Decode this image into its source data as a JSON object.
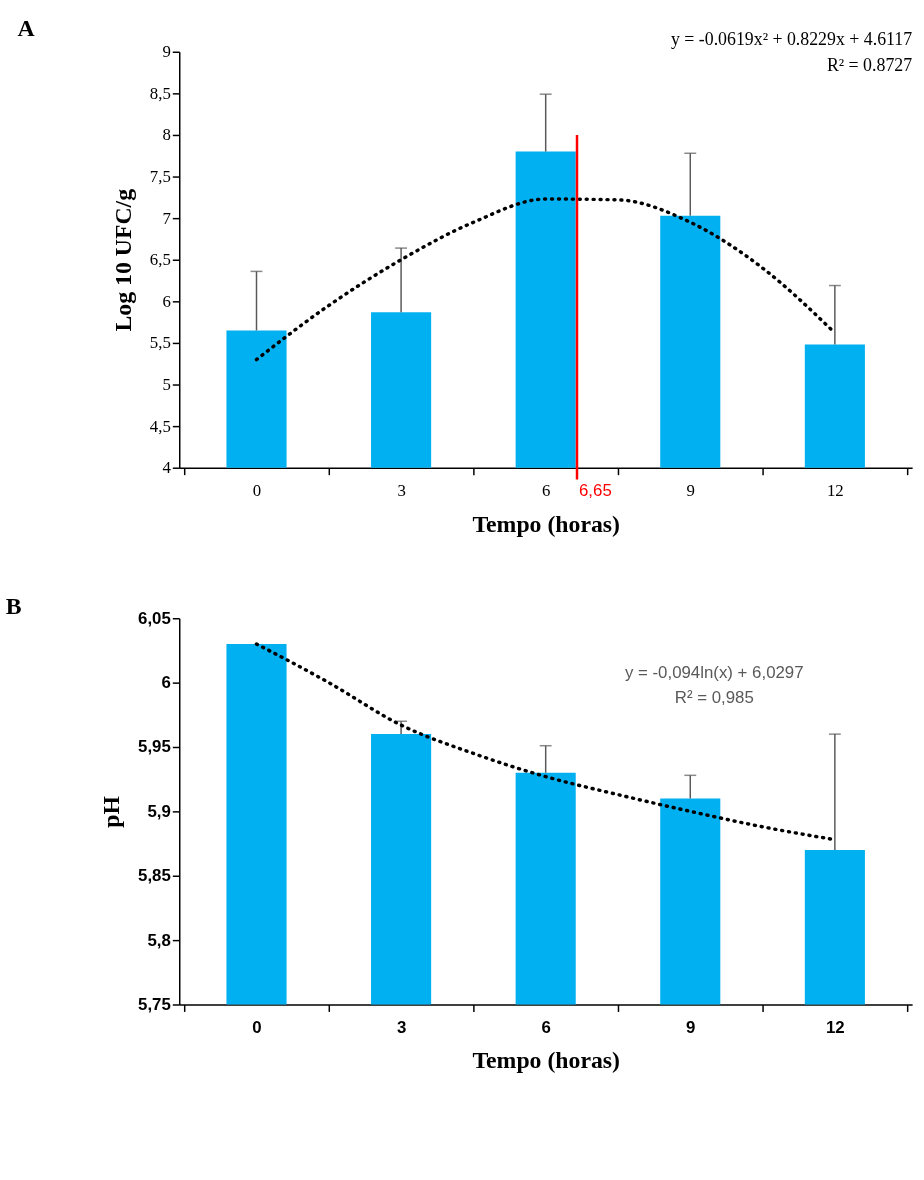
{
  "chart_data": [
    {
      "type": "bar",
      "title": "A",
      "xlabel": "Tempo (horas)",
      "ylabel": "Log 10 UFC/g",
      "x": [
        0,
        3,
        6,
        9,
        12
      ],
      "xlim": [
        -1.5,
        13.5
      ],
      "xticks": [
        {
          "value": -1.5,
          "label": null
        },
        0,
        {
          "value": 1.5,
          "label": null
        },
        3,
        {
          "value": 4.5,
          "label": null
        },
        6,
        {
          "value": 7.5,
          "label": null
        },
        9,
        {
          "value": 10.5,
          "label": null
        },
        12,
        {
          "value": 13.5,
          "label": null
        }
      ],
      "ylim": [
        4,
        9
      ],
      "yticks": [
        4,
        {
          "value": 4.5,
          "label": "4,5"
        },
        5,
        {
          "value": 5.5,
          "label": "5,5"
        },
        6,
        {
          "value": 6.5,
          "label": "6,5"
        },
        7,
        {
          "value": 7.5,
          "label": "7,5"
        },
        8,
        {
          "value": 8.5,
          "label": "8,5"
        },
        9
      ],
      "series": [
        {
          "color": "#00b0f0",
          "values": [
            5.65,
            5.87,
            7.8,
            7.03,
            5.48
          ],
          "errors": [
            [
              5.65,
              6.36
            ],
            [
              5.87,
              6.64
            ],
            [
              7.8,
              8.49
            ],
            [
              7.03,
              7.78
            ],
            [
              5.48,
              6.19
            ]
          ]
        },
        {
          "type": "line",
          "color": "#000000",
          "line_style": "dotted",
          "x": [
            0,
            1.5,
            3,
            4.5,
            6,
            7.5,
            9,
            10.5,
            12
          ],
          "values": [
            5.3,
            5.95,
            6.5,
            6.95,
            7.23,
            7.22,
            6.95,
            6.4,
            5.62
          ]
        }
      ],
      "ref_lines": [
        {
          "axis": "x",
          "value": 6.65,
          "label": "6,65",
          "color": "#ff0000"
        }
      ],
      "annotations": [
        "y = -0.0619x² + 0.8229x + 4.6117",
        "R² = 0.8727"
      ],
      "grid": false
    },
    {
      "type": "bar",
      "title": "B",
      "xlabel": "Tempo (horas)",
      "ylabel": "pH",
      "x": [
        0,
        3,
        6,
        9,
        12
      ],
      "xlim": [
        -1.5,
        13.5
      ],
      "xticks": [
        {
          "value": -1.5,
          "label": null
        },
        0,
        {
          "value": 1.5,
          "label": null
        },
        3,
        {
          "value": 4.5,
          "label": null
        },
        6,
        {
          "value": 7.5,
          "label": null
        },
        9,
        {
          "value": 10.5,
          "label": null
        },
        12,
        {
          "value": 13.5,
          "label": null
        }
      ],
      "ylim": [
        5.75,
        6.05
      ],
      "yticks": [
        {
          "value": 5.75,
          "label": "5,75"
        },
        {
          "value": 5.8,
          "label": "5,8"
        },
        {
          "value": 5.85,
          "label": "5,85"
        },
        {
          "value": 5.9,
          "label": "5,9"
        },
        {
          "value": 5.95,
          "label": "5,95"
        },
        6,
        {
          "value": 6.05,
          "label": "6,05"
        }
      ],
      "series": [
        {
          "color": "#00b0f0",
          "values": [
            6.03,
            5.96,
            5.93,
            5.91,
            5.87
          ],
          "errors": [
            null,
            [
              5.96,
              5.97
            ],
            [
              5.93,
              5.951
            ],
            [
              5.91,
              5.928
            ],
            [
              5.87,
              5.96
            ]
          ]
        },
        {
          "type": "line",
          "color": "#000000",
          "line_style": "dotted",
          "x": [
            0,
            1.5,
            3,
            4.5,
            6,
            7.5,
            9,
            10.5,
            12
          ],
          "values": [
            6.03,
            6.0,
            5.967,
            5.945,
            5.927,
            5.913,
            5.9,
            5.888,
            5.878
          ]
        }
      ],
      "annotations": [
        "y = -0,094ln(x) + 6,0297",
        "R² = 0,985"
      ],
      "grid": false
    }
  ]
}
